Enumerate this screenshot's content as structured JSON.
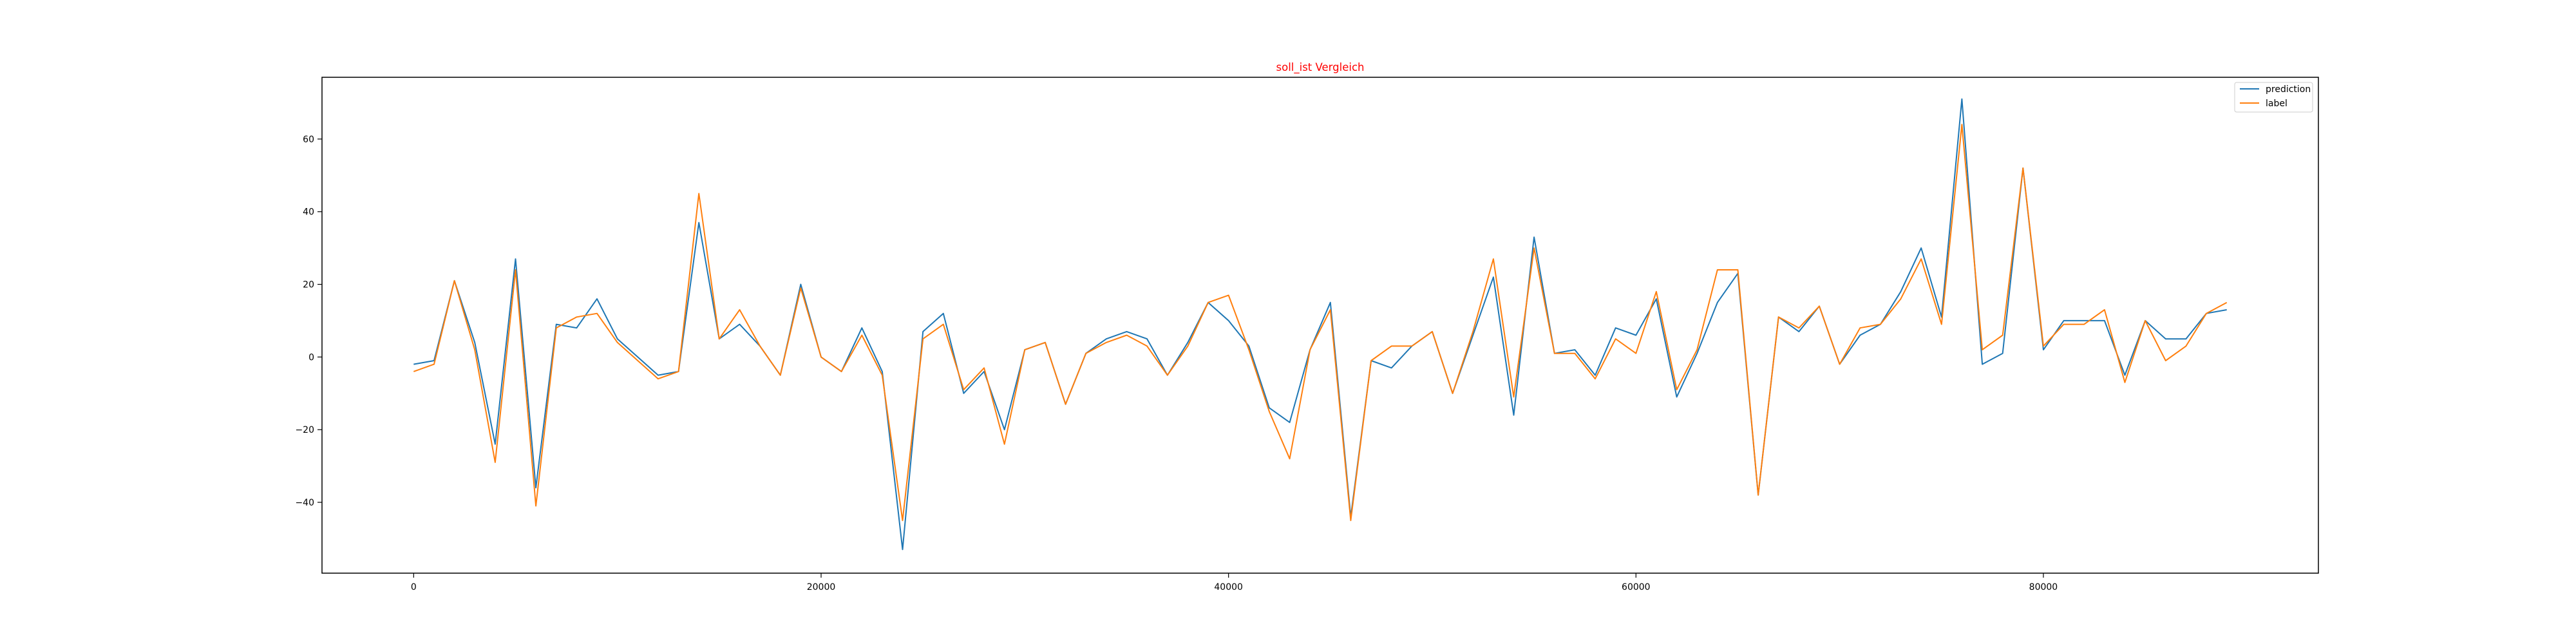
{
  "chart_data": {
    "type": "line",
    "title": "soll_ist Vergleich",
    "xlabel": "",
    "ylabel": "",
    "xlim": [
      -4500,
      93500
    ],
    "ylim": [
      -59.5,
      77
    ],
    "grid": false,
    "legend_position": "top-right",
    "x_ticks": [
      0,
      20000,
      40000,
      60000,
      80000
    ],
    "y_ticks": [
      -40,
      -20,
      0,
      20,
      40,
      60
    ],
    "x_tick_labels": [
      "0",
      "20000",
      "40000",
      "60000",
      "80000"
    ],
    "y_tick_labels": [
      "−40",
      "−20",
      "0",
      "20",
      "40",
      "60"
    ],
    "x": [
      0,
      1000,
      2000,
      3000,
      4000,
      5000,
      6000,
      7000,
      8000,
      9000,
      10000,
      11000,
      12000,
      13000,
      14000,
      15000,
      16000,
      17000,
      18000,
      19000,
      20000,
      21000,
      22000,
      23000,
      24000,
      25000,
      26000,
      27000,
      28000,
      29000,
      30000,
      31000,
      32000,
      33000,
      34000,
      35000,
      36000,
      37000,
      38000,
      39000,
      40000,
      41000,
      42000,
      43000,
      44000,
      45000,
      46000,
      47000,
      48000,
      49000,
      50000,
      51000,
      52000,
      53000,
      54000,
      55000,
      56000,
      57000,
      58000,
      59000,
      60000,
      61000,
      62000,
      63000,
      64000,
      65000,
      66000,
      67000,
      68000,
      69000,
      70000,
      71000,
      72000,
      73000,
      74000,
      75000,
      76000,
      77000,
      78000,
      79000,
      80000,
      81000,
      82000,
      83000,
      84000,
      85000,
      86000,
      87000,
      88000,
      89000
    ],
    "series": [
      {
        "name": "prediction",
        "color": "#1f77b4",
        "values": [
          -2,
          -1,
          21,
          4,
          -24,
          27,
          -36,
          9,
          8,
          16,
          5,
          0,
          -5,
          -4,
          37,
          5,
          9,
          3,
          -5,
          20,
          0,
          -4,
          8,
          -4,
          -53,
          7,
          12,
          -10,
          -4,
          -20,
          2,
          4,
          -13,
          1,
          5,
          7,
          5,
          -5,
          4,
          15,
          10,
          3,
          -14,
          -18,
          2,
          15,
          -44,
          -1,
          -3,
          3,
          7,
          -10,
          6,
          22,
          -16,
          33,
          1,
          2,
          -5,
          8,
          6,
          16,
          -11,
          1,
          15,
          23,
          -38,
          11,
          7,
          14,
          -2,
          6,
          9,
          18,
          30,
          11,
          71,
          -2,
          1,
          52,
          2,
          10,
          10,
          10,
          -5,
          10,
          5,
          5,
          12,
          13
        ]
      },
      {
        "name": "label",
        "color": "#ff7f0e",
        "values": [
          -4,
          -2,
          21,
          2,
          -29,
          24,
          -41,
          8,
          11,
          12,
          4,
          -1,
          -6,
          -4,
          45,
          5,
          13,
          3,
          -5,
          19,
          0,
          -4,
          6,
          -5,
          -45,
          5,
          9,
          -9,
          -3,
          -24,
          2,
          4,
          -13,
          1,
          4,
          6,
          3,
          -5,
          3,
          15,
          17,
          2,
          -15,
          -28,
          2,
          13,
          -45,
          -1,
          3,
          3,
          7,
          -10,
          7,
          27,
          -11,
          30,
          1,
          1,
          -6,
          5,
          1,
          18,
          -9,
          2,
          24,
          24,
          -38,
          11,
          8,
          14,
          -2,
          8,
          9,
          16,
          27,
          9,
          64,
          2,
          6,
          52,
          3,
          9,
          9,
          13,
          -7,
          10,
          -1,
          3,
          12,
          15
        ]
      }
    ]
  }
}
